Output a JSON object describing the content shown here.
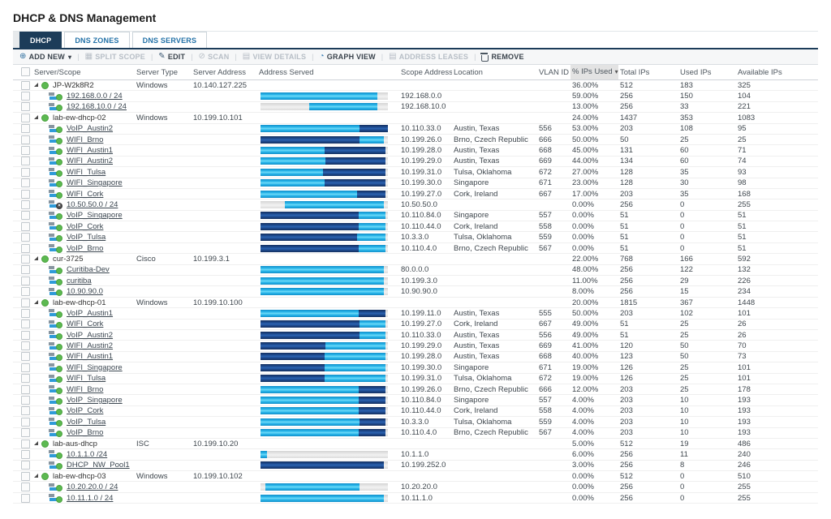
{
  "title": "DHCP & DNS Management",
  "tabs": [
    {
      "label": "DHCP",
      "active": true
    },
    {
      "label": "DNS ZONES",
      "active": false
    },
    {
      "label": "DNS SERVERS",
      "active": false
    }
  ],
  "toolbar": {
    "items": [
      {
        "label": "ADD NEW",
        "icon": "circle-plus-icon",
        "enabled": true,
        "caret": true
      },
      {
        "label": "SPLIT SCOPE",
        "icon": "split-icon",
        "enabled": false
      },
      {
        "label": "EDIT",
        "icon": "pencil-icon",
        "enabled": true
      },
      {
        "label": "SCAN",
        "icon": "scan-icon",
        "enabled": false
      },
      {
        "label": "VIEW DETAILS",
        "icon": "document-icon",
        "enabled": false
      },
      {
        "label": "GRAPH VIEW",
        "icon": "graph-icon",
        "enabled": true
      },
      {
        "label": "ADDRESS LEASES",
        "icon": "document-icon",
        "enabled": false
      },
      {
        "label": "REMOVE",
        "icon": "trash-icon",
        "enabled": true
      }
    ]
  },
  "table": {
    "columns": [
      "Server/Scope",
      "Server Type",
      "Server Address",
      "Address Served",
      "Scope Address",
      "Location",
      "VLAN ID",
      "% IPs Used",
      "Total IPs",
      "Used IPs",
      "Available IPs"
    ],
    "sorted_column": "% IPs Used",
    "sort_direction": "desc",
    "colors": {
      "bar_cyan": "#29b6ea",
      "bar_navy": "#1d4a8f",
      "bar_gray": "#dedede",
      "status_green": "#5cb951",
      "tab_active": "#1c3c59"
    },
    "rows": [
      {
        "t": "server",
        "name": "JP-W2k8R2",
        "status": "up",
        "type": "Windows",
        "addr": "10.140.127.225",
        "pct": "36.00%",
        "total": "512",
        "used": "183",
        "avail": "325"
      },
      {
        "t": "scope",
        "name": "192.168.0.0 / 24",
        "status": "up",
        "bar": [
          [
            "cyan",
            92
          ],
          [
            "gray",
            8
          ]
        ],
        "scope": "192.168.0.0",
        "pct": "59.00%",
        "total": "256",
        "used": "150",
        "avail": "104"
      },
      {
        "t": "scope",
        "name": "192.168.10.0 / 24",
        "status": "up",
        "bar": [
          [
            "gray",
            38
          ],
          [
            "cyan",
            54
          ],
          [
            "gray",
            8
          ]
        ],
        "scope": "192.168.10.0",
        "pct": "13.00%",
        "total": "256",
        "used": "33",
        "avail": "221"
      },
      {
        "t": "server",
        "name": "lab-ew-dhcp-02",
        "status": "up",
        "type": "Windows",
        "addr": "10.199.10.101",
        "pct": "24.00%",
        "total": "1437",
        "used": "353",
        "avail": "1083"
      },
      {
        "t": "scope",
        "name": "VoIP_Austin2",
        "status": "up",
        "bar": [
          [
            "cyan",
            78
          ],
          [
            "navy",
            22
          ]
        ],
        "scope": "10.110.33.0",
        "loc": "Austin, Texas",
        "vlan": "556",
        "pct": "53.00%",
        "total": "203",
        "used": "108",
        "avail": "95"
      },
      {
        "t": "scope",
        "name": "WIFI_Brno",
        "status": "up",
        "bar": [
          [
            "navy",
            78
          ],
          [
            "cyan",
            19
          ],
          [
            "gray",
            3
          ]
        ],
        "scope": "10.199.26.0",
        "loc": "Brno, Czech Republic",
        "vlan": "666",
        "pct": "50.00%",
        "total": "50",
        "used": "25",
        "avail": "25"
      },
      {
        "t": "scope",
        "name": "WIFI_Austin1",
        "status": "up",
        "bar": [
          [
            "cyan",
            50
          ],
          [
            "navy",
            48
          ],
          [
            "gray",
            2
          ]
        ],
        "scope": "10.199.28.0",
        "loc": "Austin, Texas",
        "vlan": "668",
        "pct": "45.00%",
        "total": "131",
        "used": "60",
        "avail": "71"
      },
      {
        "t": "scope",
        "name": "WIFI_Austin2",
        "status": "up",
        "bar": [
          [
            "cyan",
            51
          ],
          [
            "navy",
            47
          ],
          [
            "gray",
            2
          ]
        ],
        "scope": "10.199.29.0",
        "loc": "Austin, Texas",
        "vlan": "669",
        "pct": "44.00%",
        "total": "134",
        "used": "60",
        "avail": "74"
      },
      {
        "t": "scope",
        "name": "WIFI_Tulsa",
        "status": "up",
        "bar": [
          [
            "cyan",
            49
          ],
          [
            "navy",
            49
          ],
          [
            "gray",
            2
          ]
        ],
        "scope": "10.199.31.0",
        "loc": "Tulsa, Oklahoma",
        "vlan": "672",
        "pct": "27.00%",
        "total": "128",
        "used": "35",
        "avail": "93"
      },
      {
        "t": "scope",
        "name": "WIFI_Singapore",
        "status": "up",
        "bar": [
          [
            "cyan",
            50
          ],
          [
            "navy",
            48
          ],
          [
            "gray",
            2
          ]
        ],
        "scope": "10.199.30.0",
        "loc": "Singapore",
        "vlan": "671",
        "pct": "23.00%",
        "total": "128",
        "used": "30",
        "avail": "98"
      },
      {
        "t": "scope",
        "name": "WIFI_Cork",
        "status": "up",
        "bar": [
          [
            "cyan",
            76
          ],
          [
            "navy",
            22
          ],
          [
            "gray",
            2
          ]
        ],
        "scope": "10.199.27.0",
        "loc": "Cork, Ireland",
        "vlan": "667",
        "pct": "17.00%",
        "total": "203",
        "used": "35",
        "avail": "168"
      },
      {
        "t": "scope",
        "name": "10.50.50.0 / 24",
        "status": "down",
        "bar": [
          [
            "gray",
            19
          ],
          [
            "cyan",
            78
          ],
          [
            "gray",
            3
          ]
        ],
        "scope": "10.50.50.0",
        "pct": "0.00%",
        "total": "256",
        "used": "0",
        "avail": "255"
      },
      {
        "t": "scope",
        "name": "VoIP_Singapore",
        "status": "up",
        "bar": [
          [
            "navy",
            77
          ],
          [
            "cyan",
            21
          ],
          [
            "gray",
            2
          ]
        ],
        "scope": "10.110.84.0",
        "loc": "Singapore",
        "vlan": "557",
        "pct": "0.00%",
        "total": "51",
        "used": "0",
        "avail": "51"
      },
      {
        "t": "scope",
        "name": "VoIP_Cork",
        "status": "up",
        "bar": [
          [
            "navy",
            77
          ],
          [
            "cyan",
            21
          ],
          [
            "gray",
            2
          ]
        ],
        "scope": "10.110.44.0",
        "loc": "Cork, Ireland",
        "vlan": "558",
        "pct": "0.00%",
        "total": "51",
        "used": "0",
        "avail": "51"
      },
      {
        "t": "scope",
        "name": "VoIP_Tulsa",
        "status": "up",
        "bar": [
          [
            "navy",
            76
          ],
          [
            "cyan",
            22
          ],
          [
            "gray",
            2
          ]
        ],
        "scope": "10.3.3.0",
        "loc": "Tulsa, Oklahoma",
        "vlan": "559",
        "pct": "0.00%",
        "total": "51",
        "used": "0",
        "avail": "51"
      },
      {
        "t": "scope",
        "name": "VoIP_Brno",
        "status": "up",
        "bar": [
          [
            "navy",
            77
          ],
          [
            "cyan",
            21
          ],
          [
            "gray",
            2
          ]
        ],
        "scope": "10.110.4.0",
        "loc": "Brno, Czech Republic",
        "vlan": "567",
        "pct": "0.00%",
        "total": "51",
        "used": "0",
        "avail": "51"
      },
      {
        "t": "server",
        "name": "cur-3725",
        "status": "up",
        "type": "Cisco",
        "addr": "10.199.3.1",
        "pct": "22.00%",
        "total": "768",
        "used": "166",
        "avail": "592"
      },
      {
        "t": "scope",
        "name": "Curitiba-Dev",
        "status": "up",
        "bar": [
          [
            "cyan",
            97
          ],
          [
            "gray",
            3
          ]
        ],
        "scope": "80.0.0.0",
        "pct": "48.00%",
        "total": "256",
        "used": "122",
        "avail": "132"
      },
      {
        "t": "scope",
        "name": "curitiba",
        "status": "up",
        "bar": [
          [
            "cyan",
            97
          ],
          [
            "gray",
            3
          ]
        ],
        "scope": "10.199.3.0",
        "pct": "11.00%",
        "total": "256",
        "used": "29",
        "avail": "226"
      },
      {
        "t": "scope",
        "name": "10.90.90.0",
        "status": "up",
        "bar": [
          [
            "cyan",
            97
          ],
          [
            "gray",
            3
          ]
        ],
        "scope": "10.90.90.0",
        "pct": "8.00%",
        "total": "256",
        "used": "15",
        "avail": "234"
      },
      {
        "t": "server",
        "name": "lab-ew-dhcp-01",
        "status": "up",
        "type": "Windows",
        "addr": "10.199.10.100",
        "pct": "20.00%",
        "total": "1815",
        "used": "367",
        "avail": "1448"
      },
      {
        "t": "scope",
        "name": "VoIP_Austin1",
        "status": "up",
        "bar": [
          [
            "cyan",
            77
          ],
          [
            "navy",
            21
          ],
          [
            "gray",
            2
          ]
        ],
        "scope": "10.199.11.0",
        "loc": "Austin, Texas",
        "vlan": "555",
        "pct": "50.00%",
        "total": "203",
        "used": "102",
        "avail": "101"
      },
      {
        "t": "scope",
        "name": "WIFI_Cork",
        "status": "up",
        "bar": [
          [
            "navy",
            78
          ],
          [
            "cyan",
            20
          ],
          [
            "gray",
            2
          ]
        ],
        "scope": "10.199.27.0",
        "loc": "Cork, Ireland",
        "vlan": "667",
        "pct": "49.00%",
        "total": "51",
        "used": "25",
        "avail": "26"
      },
      {
        "t": "scope",
        "name": "VoIP_Austin2",
        "status": "up",
        "bar": [
          [
            "navy",
            78
          ],
          [
            "cyan",
            20
          ],
          [
            "gray",
            2
          ]
        ],
        "scope": "10.110.33.0",
        "loc": "Austin, Texas",
        "vlan": "556",
        "pct": "49.00%",
        "total": "51",
        "used": "25",
        "avail": "26"
      },
      {
        "t": "scope",
        "name": "WIFI_Austin2",
        "status": "up",
        "bar": [
          [
            "navy",
            51
          ],
          [
            "cyan",
            47
          ],
          [
            "gray",
            2
          ]
        ],
        "scope": "10.199.29.0",
        "loc": "Austin, Texas",
        "vlan": "669",
        "pct": "41.00%",
        "total": "120",
        "used": "50",
        "avail": "70"
      },
      {
        "t": "scope",
        "name": "WIFI_Austin1",
        "status": "up",
        "bar": [
          [
            "navy",
            50
          ],
          [
            "cyan",
            48
          ],
          [
            "gray",
            2
          ]
        ],
        "scope": "10.199.28.0",
        "loc": "Austin, Texas",
        "vlan": "668",
        "pct": "40.00%",
        "total": "123",
        "used": "50",
        "avail": "73"
      },
      {
        "t": "scope",
        "name": "WIFI_Singapore",
        "status": "up",
        "bar": [
          [
            "navy",
            50
          ],
          [
            "cyan",
            48
          ],
          [
            "gray",
            2
          ]
        ],
        "scope": "10.199.30.0",
        "loc": "Singapore",
        "vlan": "671",
        "pct": "19.00%",
        "total": "126",
        "used": "25",
        "avail": "101"
      },
      {
        "t": "scope",
        "name": "WIFI_Tulsa",
        "status": "up",
        "bar": [
          [
            "navy",
            50
          ],
          [
            "cyan",
            48
          ],
          [
            "gray",
            2
          ]
        ],
        "scope": "10.199.31.0",
        "loc": "Tulsa, Oklahoma",
        "vlan": "672",
        "pct": "19.00%",
        "total": "126",
        "used": "25",
        "avail": "101"
      },
      {
        "t": "scope",
        "name": "WIFI_Brno",
        "status": "up",
        "bar": [
          [
            "cyan",
            77
          ],
          [
            "navy",
            21
          ],
          [
            "gray",
            2
          ]
        ],
        "scope": "10.199.26.0",
        "loc": "Brno, Czech Republic",
        "vlan": "666",
        "pct": "12.00%",
        "total": "203",
        "used": "25",
        "avail": "178"
      },
      {
        "t": "scope",
        "name": "VoIP_Singapore",
        "status": "up",
        "bar": [
          [
            "cyan",
            77
          ],
          [
            "navy",
            21
          ],
          [
            "gray",
            2
          ]
        ],
        "scope": "10.110.84.0",
        "loc": "Singapore",
        "vlan": "557",
        "pct": "4.00%",
        "total": "203",
        "used": "10",
        "avail": "193"
      },
      {
        "t": "scope",
        "name": "VoIP_Cork",
        "status": "up",
        "bar": [
          [
            "cyan",
            77
          ],
          [
            "navy",
            21
          ],
          [
            "gray",
            2
          ]
        ],
        "scope": "10.110.44.0",
        "loc": "Cork, Ireland",
        "vlan": "558",
        "pct": "4.00%",
        "total": "203",
        "used": "10",
        "avail": "193"
      },
      {
        "t": "scope",
        "name": "VoIP_Tulsa",
        "status": "up",
        "bar": [
          [
            "cyan",
            78
          ],
          [
            "navy",
            20
          ],
          [
            "gray",
            2
          ]
        ],
        "scope": "10.3.3.0",
        "loc": "Tulsa, Oklahoma",
        "vlan": "559",
        "pct": "4.00%",
        "total": "203",
        "used": "10",
        "avail": "193"
      },
      {
        "t": "scope",
        "name": "VoIP_Brno",
        "status": "up",
        "bar": [
          [
            "cyan",
            77
          ],
          [
            "navy",
            21
          ],
          [
            "gray",
            2
          ]
        ],
        "scope": "10.110.4.0",
        "loc": "Brno, Czech Republic",
        "vlan": "567",
        "pct": "4.00%",
        "total": "203",
        "used": "10",
        "avail": "193"
      },
      {
        "t": "server",
        "name": "lab-aus-dhcp",
        "status": "up",
        "type": "ISC",
        "addr": "10.199.10.20",
        "pct": "5.00%",
        "total": "512",
        "used": "19",
        "avail": "486"
      },
      {
        "t": "scope",
        "name": "10.1.1.0 /24",
        "status": "up",
        "bar": [
          [
            "cyan",
            5
          ],
          [
            "gray",
            95
          ]
        ],
        "scope": "10.1.1.0",
        "pct": "6.00%",
        "total": "256",
        "used": "11",
        "avail": "240"
      },
      {
        "t": "scope",
        "name": "DHCP_NW_Pool1",
        "status": "up",
        "bar": [
          [
            "navy",
            97
          ],
          [
            "gray",
            3
          ]
        ],
        "scope": "10.199.252.0",
        "pct": "3.00%",
        "total": "256",
        "used": "8",
        "avail": "246"
      },
      {
        "t": "server",
        "name": "lab-ew-dhcp-03",
        "status": "up",
        "type": "Windows",
        "addr": "10.199.10.102",
        "pct": "0.00%",
        "total": "512",
        "used": "0",
        "avail": "510"
      },
      {
        "t": "scope",
        "name": "10.20.20.0 / 24",
        "status": "up",
        "bar": [
          [
            "gray",
            4
          ],
          [
            "cyan",
            74
          ],
          [
            "gray",
            22
          ]
        ],
        "scope": "10.20.20.0",
        "pct": "0.00%",
        "total": "256",
        "used": "0",
        "avail": "255"
      },
      {
        "t": "scope",
        "name": "10.11.1.0 / 24",
        "status": "up",
        "bar": [
          [
            "cyan",
            97
          ],
          [
            "gray",
            3
          ]
        ],
        "scope": "10.11.1.0",
        "pct": "0.00%",
        "total": "256",
        "used": "0",
        "avail": "255"
      }
    ]
  }
}
